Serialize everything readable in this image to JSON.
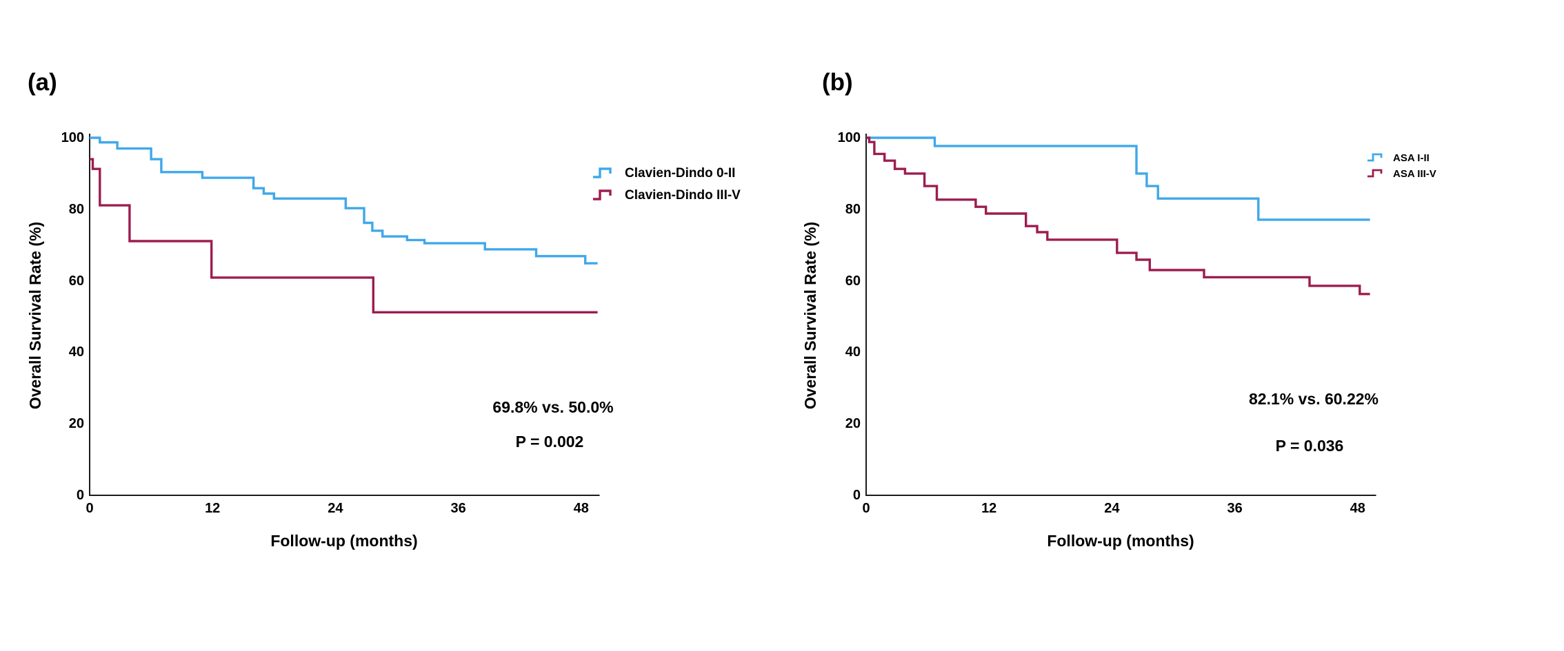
{
  "figure": {
    "background": "#ffffff",
    "text_color": "#000000"
  },
  "chart_data": [
    {
      "type": "line",
      "subtype": "kaplan-meier-step",
      "panel_label": "(a)",
      "xlabel": "Follow-up (months)",
      "ylabel": "Overall Survival Rate (%)",
      "xlim": [
        0,
        49.8
      ],
      "ylim": [
        0,
        100
      ],
      "xticks": [
        0,
        12,
        24,
        36,
        48
      ],
      "yticks": [
        0,
        20,
        40,
        60,
        80,
        100
      ],
      "grid": false,
      "legend_position": "upper-right-of-plot",
      "annotations": [
        "69.8% vs. 50.0%",
        "P = 0.002"
      ],
      "series": [
        {
          "name": "Clavien-Dindo 0-II",
          "color": "#3FA8EA",
          "end_month": 49.6,
          "points": [
            [
              0,
              100
            ],
            [
              1,
              98.7
            ],
            [
              2.7,
              97
            ],
            [
              6,
              94
            ],
            [
              7,
              90.4
            ],
            [
              11,
              88.8
            ],
            [
              16,
              85.9
            ],
            [
              17,
              84.4
            ],
            [
              18,
              83
            ],
            [
              25,
              80.3
            ],
            [
              26.8,
              76.2
            ],
            [
              27.6,
              74
            ],
            [
              28.6,
              72.4
            ],
            [
              31,
              71.4
            ],
            [
              32.7,
              70.5
            ],
            [
              38.6,
              68.8
            ],
            [
              43.6,
              66.9
            ],
            [
              48.4,
              64.9
            ]
          ]
        },
        {
          "name": "Clavien-Dindo III-V",
          "color": "#9D1D4F",
          "end_month": 49.6,
          "points": [
            [
              0,
              94
            ],
            [
              0.3,
              91.3
            ],
            [
              1,
              81.1
            ],
            [
              3.9,
              71.1
            ],
            [
              11.9,
              60.9
            ],
            [
              27.7,
              51.2
            ]
          ]
        }
      ]
    },
    {
      "type": "line",
      "subtype": "kaplan-meier-step",
      "panel_label": "(b)",
      "xlabel": "Follow-up (months)",
      "ylabel": "Overall Survival Rate (%)",
      "xlim": [
        0,
        49.8
      ],
      "ylim": [
        0,
        100
      ],
      "xticks": [
        0,
        12,
        24,
        36,
        48
      ],
      "yticks": [
        0,
        20,
        40,
        60,
        80,
        100
      ],
      "grid": false,
      "legend_position": "upper-right-of-plot",
      "annotations": [
        "82.1% vs. 60.22%",
        "P = 0.036"
      ],
      "series": [
        {
          "name": "ASA I-II",
          "color": "#3FA8EA",
          "end_month": 49.2,
          "points": [
            [
              0,
              100
            ],
            [
              6.7,
              97.7
            ],
            [
              26.4,
              90
            ],
            [
              27.4,
              86.5
            ],
            [
              28.5,
              83
            ],
            [
              38.3,
              77.1
            ]
          ]
        },
        {
          "name": "ASA III-V",
          "color": "#9D1D4F",
          "end_month": 49.2,
          "points": [
            [
              0,
              100
            ],
            [
              0.3,
              98.8
            ],
            [
              0.8,
              95.5
            ],
            [
              1.8,
              93.6
            ],
            [
              2.8,
              91.3
            ],
            [
              3.8,
              90
            ],
            [
              5.7,
              86.5
            ],
            [
              6.9,
              82.7
            ],
            [
              10.7,
              80.7
            ],
            [
              11.7,
              78.8
            ],
            [
              15.6,
              75.3
            ],
            [
              16.7,
              73.6
            ],
            [
              17.7,
              71.5
            ],
            [
              24.5,
              67.8
            ],
            [
              26.4,
              65.9
            ],
            [
              27.7,
              63
            ],
            [
              33,
              61
            ],
            [
              43.3,
              58.6
            ],
            [
              48.2,
              56.3
            ]
          ]
        }
      ]
    }
  ]
}
